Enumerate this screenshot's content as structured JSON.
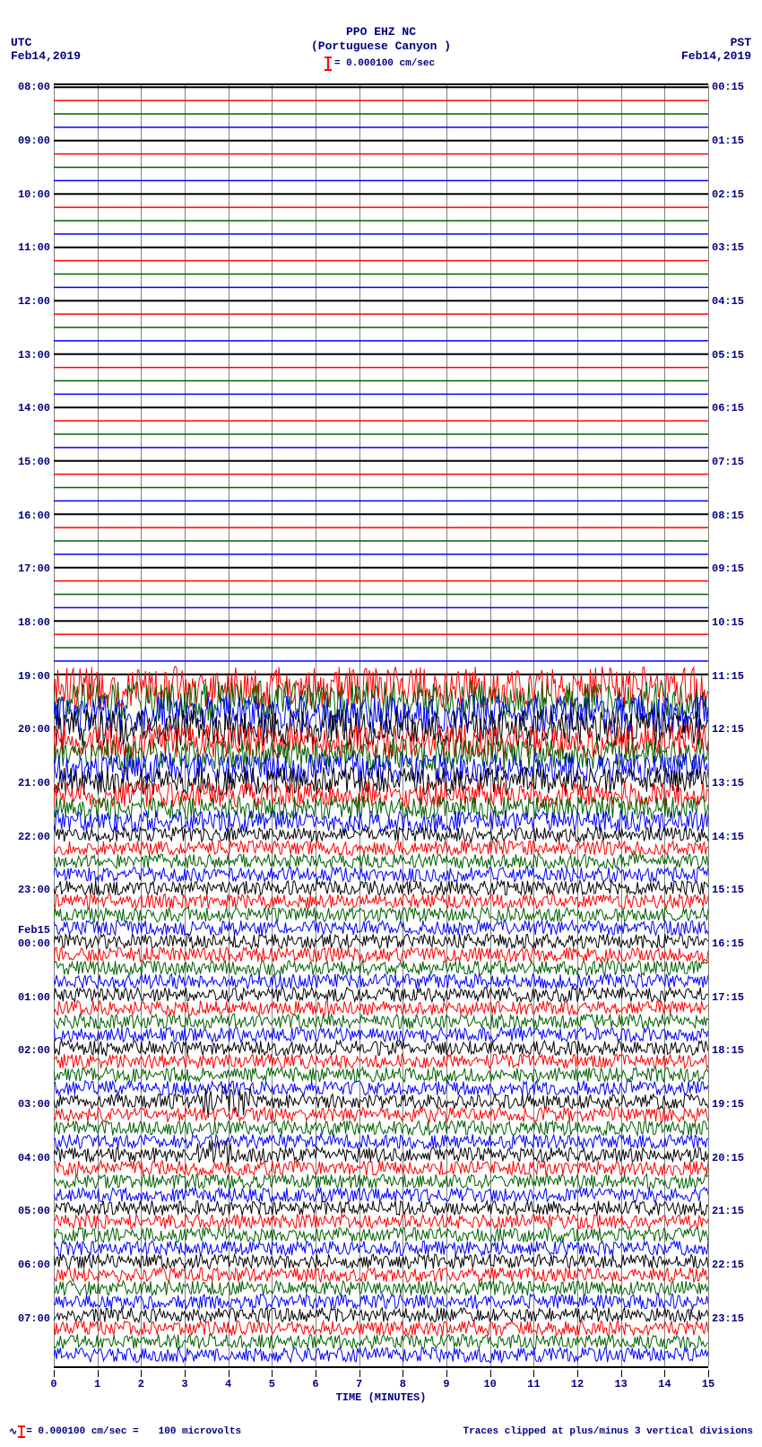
{
  "header": {
    "line1": "PPO EHZ NC",
    "line2": "(Portuguese Canyon )",
    "scale_text": "= 0.000100 cm/sec"
  },
  "tz": {
    "left": "UTC",
    "right": "PST"
  },
  "date": {
    "left": "Feb14,2019",
    "right": "Feb14,2019"
  },
  "plot": {
    "n_traces": 96,
    "colors": [
      "#000000",
      "#ff0000",
      "#006000",
      "#0000ff"
    ],
    "grid_vertical_count": 16,
    "background": "#ffffff",
    "grid_color": "#808080",
    "quiet_until_index": 45,
    "big_noise_until_index": 56,
    "left_hour_labels": [
      {
        "i": 0,
        "t": "08:00"
      },
      {
        "i": 4,
        "t": "09:00"
      },
      {
        "i": 8,
        "t": "10:00"
      },
      {
        "i": 12,
        "t": "11:00"
      },
      {
        "i": 16,
        "t": "12:00"
      },
      {
        "i": 20,
        "t": "13:00"
      },
      {
        "i": 24,
        "t": "14:00"
      },
      {
        "i": 28,
        "t": "15:00"
      },
      {
        "i": 32,
        "t": "16:00"
      },
      {
        "i": 36,
        "t": "17:00"
      },
      {
        "i": 40,
        "t": "18:00"
      },
      {
        "i": 44,
        "t": "19:00"
      },
      {
        "i": 48,
        "t": "20:00"
      },
      {
        "i": 52,
        "t": "21:00"
      },
      {
        "i": 56,
        "t": "22:00"
      },
      {
        "i": 60,
        "t": "23:00"
      },
      {
        "i": 64,
        "t": "00:00"
      },
      {
        "i": 68,
        "t": "01:00"
      },
      {
        "i": 72,
        "t": "02:00"
      },
      {
        "i": 76,
        "t": "03:00"
      },
      {
        "i": 80,
        "t": "04:00"
      },
      {
        "i": 84,
        "t": "05:00"
      },
      {
        "i": 88,
        "t": "06:00"
      },
      {
        "i": 92,
        "t": "07:00"
      }
    ],
    "left_date_labels": [
      {
        "i": 63,
        "t": "Feb15"
      }
    ],
    "right_labels": [
      {
        "i": 0,
        "t": "00:15"
      },
      {
        "i": 4,
        "t": "01:15"
      },
      {
        "i": 8,
        "t": "02:15"
      },
      {
        "i": 12,
        "t": "03:15"
      },
      {
        "i": 16,
        "t": "04:15"
      },
      {
        "i": 20,
        "t": "05:15"
      },
      {
        "i": 24,
        "t": "06:15"
      },
      {
        "i": 28,
        "t": "07:15"
      },
      {
        "i": 32,
        "t": "08:15"
      },
      {
        "i": 36,
        "t": "09:15"
      },
      {
        "i": 40,
        "t": "10:15"
      },
      {
        "i": 44,
        "t": "11:15"
      },
      {
        "i": 48,
        "t": "12:15"
      },
      {
        "i": 52,
        "t": "13:15"
      },
      {
        "i": 56,
        "t": "14:15"
      },
      {
        "i": 60,
        "t": "15:15"
      },
      {
        "i": 64,
        "t": "16:15"
      },
      {
        "i": 68,
        "t": "17:15"
      },
      {
        "i": 72,
        "t": "18:15"
      },
      {
        "i": 76,
        "t": "19:15"
      },
      {
        "i": 80,
        "t": "20:15"
      },
      {
        "i": 84,
        "t": "21:15"
      },
      {
        "i": 88,
        "t": "22:15"
      },
      {
        "i": 92,
        "t": "23:15"
      }
    ],
    "events": [
      {
        "trace": 76,
        "x": 0.23,
        "w": 0.07,
        "amp": 2.2
      },
      {
        "trace": 80,
        "x": 0.22,
        "w": 0.06,
        "amp": 2.0
      },
      {
        "trace": 72,
        "x": 0.07,
        "w": 0.02,
        "amp": 1.8
      }
    ]
  },
  "xaxis": {
    "ticks": [
      "0",
      "1",
      "2",
      "3",
      "4",
      "5",
      "6",
      "7",
      "8",
      "9",
      "10",
      "11",
      "12",
      "13",
      "14",
      "15"
    ],
    "title": "TIME (MINUTES)"
  },
  "footer": {
    "left_parts": [
      "= 0.000100 cm/sec =",
      "100 microvolts"
    ],
    "right": "Traces clipped at plus/minus 3 vertical divisions"
  }
}
